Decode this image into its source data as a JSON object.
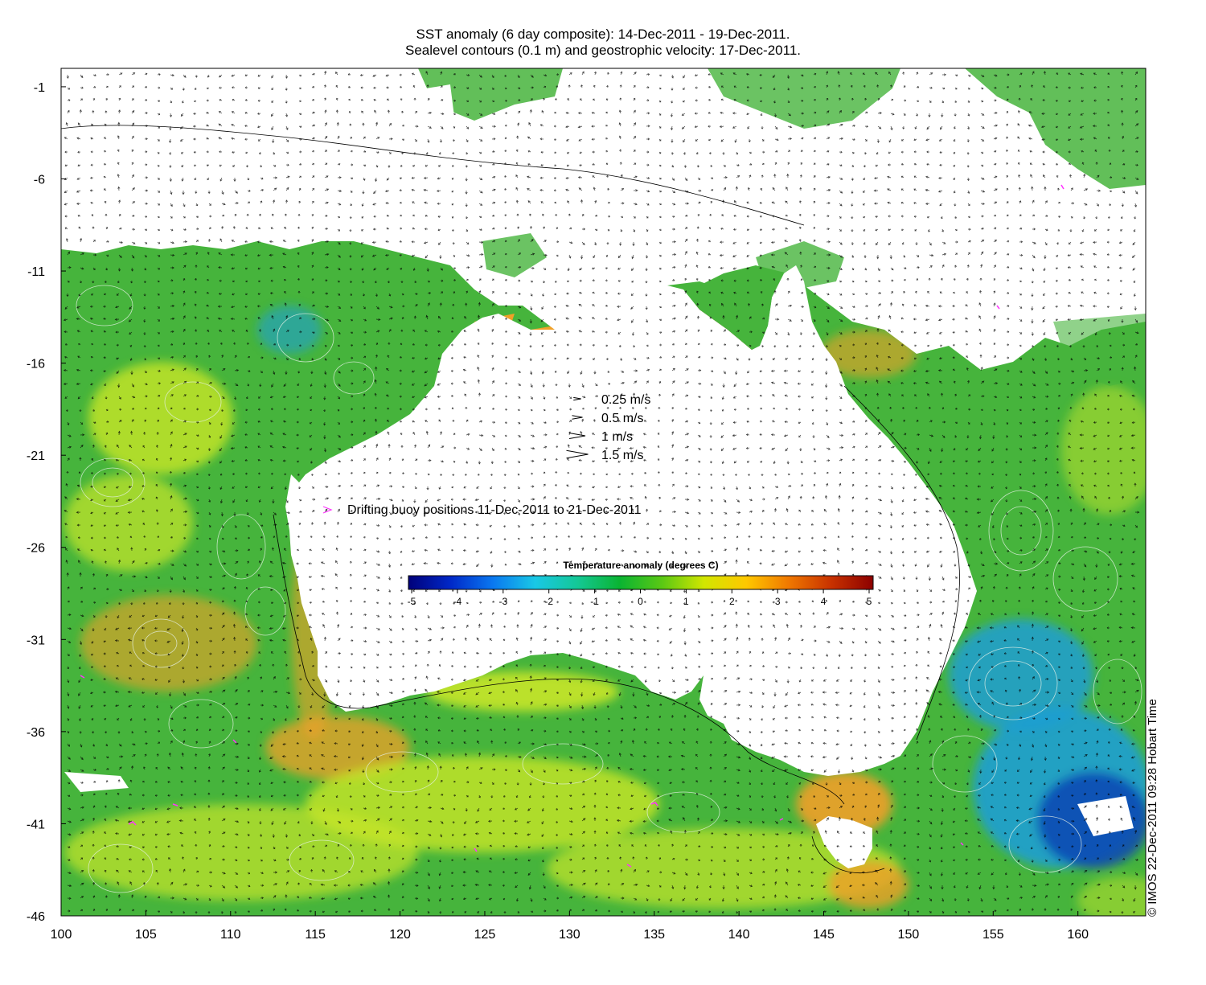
{
  "title_line1": "SST anomaly (6 day composite): 14-Dec-2011 - 19-Dec-2011.",
  "title_line2": "Sealevel contours (0.1 m) and geostrophic velocity: 17-Dec-2011.",
  "credit": "© IMOS 22-Dec-2011 09:28 Hobart Time",
  "axes": {
    "lon_range": [
      100,
      164
    ],
    "lat_range": [
      -46,
      0
    ],
    "x_ticks": [
      "100",
      "105",
      "110",
      "115",
      "120",
      "125",
      "130",
      "135",
      "140",
      "145",
      "150",
      "155",
      "160"
    ],
    "y_ticks": [
      "-1",
      "-6",
      "-11",
      "-16",
      "-21",
      "-26",
      "-31",
      "-36",
      "-41",
      "-46"
    ]
  },
  "velocity_legend": [
    {
      "label": "0.25 m/s",
      "speed": 0.25
    },
    {
      "label": "0.5 m/s",
      "speed": 0.5
    },
    {
      "label": "1 m/s",
      "speed": 1
    },
    {
      "label": "1.5 m/s",
      "speed": 1.5
    }
  ],
  "buoy_legend": {
    "label": "Drifting buoy positions 11-Dec-2011 to 21-Dec-2011",
    "color": "#ff33ff"
  },
  "colorbar": {
    "title": "Temperature anomaly (degrees C)",
    "range": [
      -5,
      5
    ],
    "ticks": [
      "-5",
      "-4",
      "-3",
      "-2",
      "-1",
      "0",
      "1",
      "2",
      "3",
      "4",
      "5"
    ],
    "colors": [
      "#00007a",
      "#0028c8",
      "#0a78f0",
      "#19c8e6",
      "#14c896",
      "#0ab432",
      "#5ac814",
      "#d2e600",
      "#ffc800",
      "#f07800",
      "#c83200",
      "#8c0000"
    ]
  },
  "palette": {
    "land": "#ffffff",
    "ocean_base": "#46b43c",
    "anomaly_warm": "#c8e628",
    "anomaly_hot": "#f0a028",
    "anomaly_extreme": "#a02800",
    "anomaly_cool": "#1e9ed2",
    "anomaly_cold": "#0a46b4",
    "cloud": "#ffffff"
  }
}
